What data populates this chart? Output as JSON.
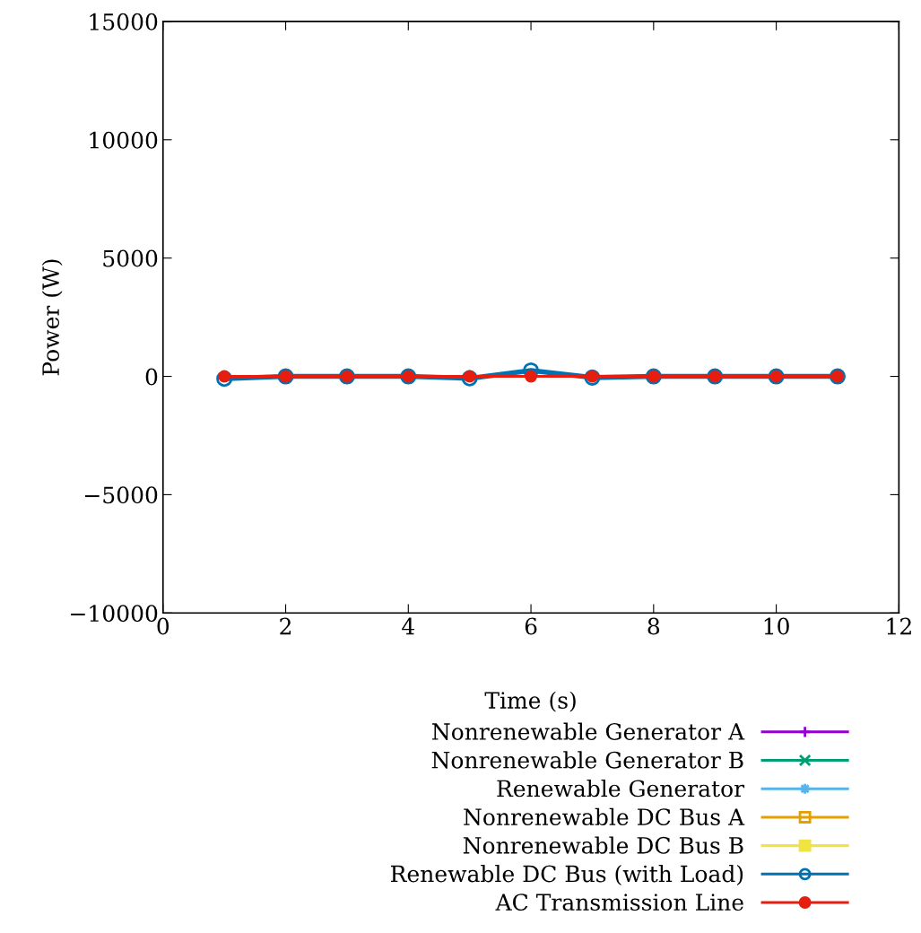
{
  "chart_data": {
    "type": "line",
    "xlabel": "Time (s)",
    "ylabel": "Power (W)",
    "x": [
      1,
      2,
      3,
      4,
      5,
      6,
      7,
      8,
      9,
      10,
      11
    ],
    "xlim": [
      0,
      12
    ],
    "xticks": [
      0,
      2,
      4,
      6,
      8,
      10,
      12
    ],
    "ylim": [
      -10000,
      15000
    ],
    "yticks": [
      {
        "value": -10000,
        "label": "−10000"
      },
      {
        "value": -5000,
        "label": "−5000"
      },
      0,
      5000,
      10000,
      15000
    ],
    "grid": false,
    "legend": "bottom",
    "line_style": "solid",
    "series": [
      {
        "name": "Nonrenewable Generator A",
        "color": "#9400d3",
        "marker": "plus",
        "values": [
          null,
          null,
          null,
          null,
          null,
          null,
          null,
          null,
          null,
          null,
          null
        ]
      },
      {
        "name": "Nonrenewable Generator B",
        "color": "#009e73",
        "marker": "cross",
        "values": [
          null,
          null,
          null,
          null,
          null,
          null,
          null,
          null,
          null,
          null,
          null
        ]
      },
      {
        "name": "Renewable Generator",
        "color": "#56b4e9",
        "marker": "star",
        "values": [
          null,
          null,
          null,
          null,
          null,
          null,
          null,
          null,
          null,
          null,
          null
        ]
      },
      {
        "name": "Nonrenewable DC Bus A",
        "color": "#e69f00",
        "marker": "square",
        "values": [
          null,
          null,
          null,
          null,
          null,
          null,
          null,
          null,
          null,
          null,
          null
        ]
      },
      {
        "name": "Nonrenewable DC Bus B",
        "color": "#f0e442",
        "marker": "square",
        "values": [
          null,
          null,
          null,
          null,
          null,
          null,
          null,
          null,
          null,
          null,
          null
        ]
      },
      {
        "name": "Renewable DC Bus (with Load)",
        "color": "#0072b2",
        "marker": "circle",
        "values": [
          -100,
          0,
          0,
          0,
          -80,
          250,
          -50,
          0,
          0,
          0,
          0
        ]
      },
      {
        "name": "AC Transmission Line",
        "color": "#e51e10",
        "marker": "circle",
        "values": [
          0,
          0,
          0,
          0,
          0,
          0,
          0,
          0,
          0,
          0,
          0
        ]
      }
    ]
  }
}
